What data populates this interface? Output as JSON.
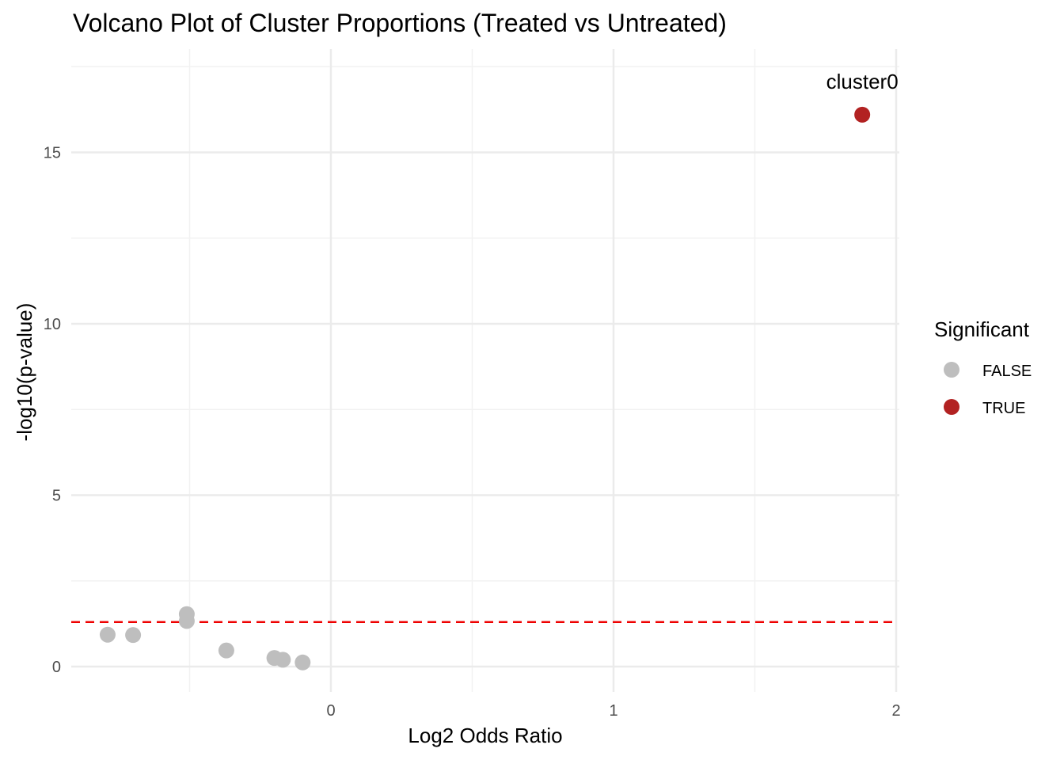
{
  "chart_data": {
    "type": "scatter",
    "title": "Volcano Plot of Cluster Proportions (Treated vs Untreated)",
    "xlabel": "Log2 Odds Ratio",
    "ylabel": "-log10(p-value)",
    "xlim": [
      -0.92,
      2.0
    ],
    "ylim": [
      -0.7,
      17.6
    ],
    "x_ticks": [
      0,
      1,
      2
    ],
    "x_tick_labels": [
      "0",
      "1",
      "2"
    ],
    "y_ticks": [
      0,
      5,
      10,
      15
    ],
    "y_tick_labels": [
      "0",
      "5",
      "10",
      "15"
    ],
    "threshold": {
      "y": 1.3,
      "color": "#ee0000",
      "style": "dashed"
    },
    "grid": true,
    "legend": {
      "title": "Significant",
      "position": "right",
      "entries": [
        {
          "label": "FALSE",
          "color": "#bebebe"
        },
        {
          "label": "TRUE",
          "color": "#b22222"
        }
      ]
    },
    "series": [
      {
        "name": "FALSE",
        "color": "#bebebe",
        "points": [
          {
            "x": -0.79,
            "y": 0.93
          },
          {
            "x": -0.7,
            "y": 0.92
          },
          {
            "x": -0.51,
            "y": 1.53
          },
          {
            "x": -0.51,
            "y": 1.33
          },
          {
            "x": -0.37,
            "y": 0.47
          },
          {
            "x": -0.2,
            "y": 0.25
          },
          {
            "x": -0.17,
            "y": 0.2
          },
          {
            "x": -0.1,
            "y": 0.12
          }
        ]
      },
      {
        "name": "TRUE",
        "color": "#b22222",
        "points": [
          {
            "x": 1.88,
            "y": 16.1,
            "label": "cluster0"
          }
        ]
      }
    ]
  }
}
